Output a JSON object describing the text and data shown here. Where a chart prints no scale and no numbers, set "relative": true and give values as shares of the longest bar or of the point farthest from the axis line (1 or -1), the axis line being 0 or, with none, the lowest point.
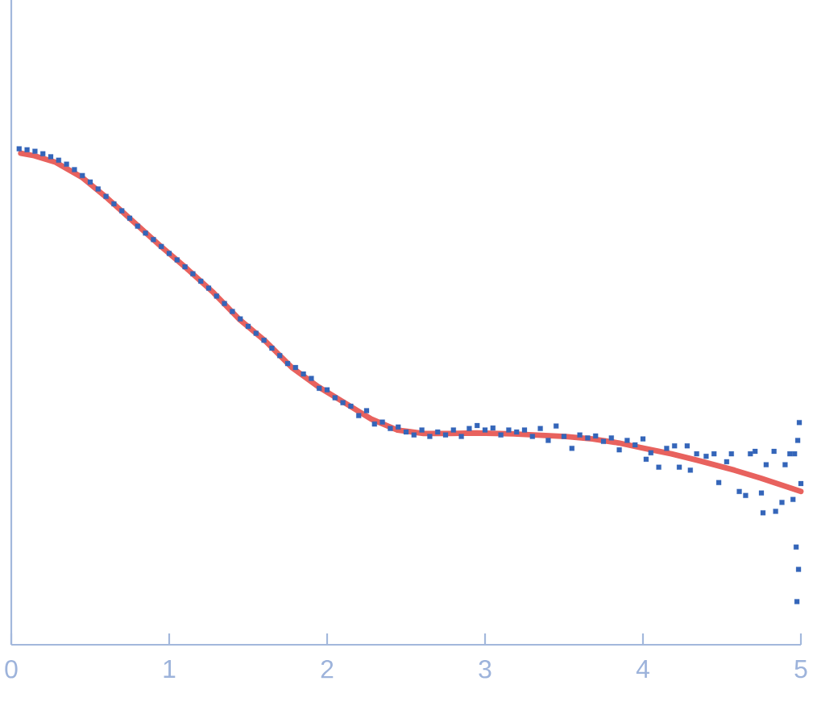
{
  "chart_data": {
    "type": "scatter",
    "relative": true,
    "xlim": [
      0,
      5
    ],
    "xticks": [
      0,
      1,
      2,
      3,
      4,
      5
    ],
    "marker": "square",
    "series": [
      {
        "color": "#3465b9",
        "x": [
          0.05,
          0.1,
          0.15,
          0.2,
          0.25,
          0.3,
          0.35,
          0.4,
          0.45,
          0.5,
          0.55,
          0.6,
          0.65,
          0.7,
          0.75,
          0.8,
          0.85,
          0.9,
          0.95,
          1.0,
          1.05,
          1.1,
          1.15,
          1.2,
          1.25,
          1.3,
          1.35,
          1.4,
          1.45,
          1.5,
          1.55,
          1.6,
          1.65,
          1.7,
          1.75,
          1.8,
          1.85,
          1.9,
          1.95,
          2.0,
          2.05,
          2.1,
          2.15,
          2.2,
          2.25,
          2.3,
          2.35,
          2.4,
          2.45,
          2.5,
          2.55,
          2.6,
          2.65,
          2.7,
          2.75,
          2.8,
          2.85,
          2.9,
          2.95,
          3.0,
          3.05,
          3.1,
          3.15,
          3.2,
          3.25,
          3.3,
          3.35,
          3.4,
          3.45,
          3.5,
          3.55,
          3.6,
          3.65,
          3.7,
          3.75,
          3.8,
          3.85,
          3.9,
          3.95,
          4.0,
          4.02,
          4.05,
          4.1,
          4.15,
          4.2,
          4.23,
          4.28,
          4.3,
          4.34,
          4.4,
          4.45,
          4.48,
          4.53,
          4.56,
          4.61,
          4.65,
          4.68,
          4.71,
          4.75,
          4.76,
          4.78,
          4.83,
          4.84,
          4.88,
          4.9,
          4.93,
          4.95,
          4.96,
          4.97,
          4.975,
          4.98,
          4.985,
          4.99,
          5.0
        ],
        "values": [
          1.0,
          0.998,
          0.995,
          0.99,
          0.984,
          0.977,
          0.969,
          0.958,
          0.946,
          0.933,
          0.919,
          0.904,
          0.889,
          0.875,
          0.86,
          0.844,
          0.83,
          0.817,
          0.803,
          0.789,
          0.776,
          0.762,
          0.748,
          0.733,
          0.719,
          0.703,
          0.688,
          0.672,
          0.657,
          0.642,
          0.628,
          0.614,
          0.598,
          0.583,
          0.567,
          0.559,
          0.546,
          0.537,
          0.517,
          0.514,
          0.498,
          0.488,
          0.481,
          0.462,
          0.472,
          0.445,
          0.449,
          0.436,
          0.439,
          0.429,
          0.423,
          0.433,
          0.42,
          0.429,
          0.423,
          0.433,
          0.42,
          0.436,
          0.442,
          0.433,
          0.437,
          0.423,
          0.433,
          0.429,
          0.433,
          0.42,
          0.436,
          0.412,
          0.441,
          0.42,
          0.396,
          0.423,
          0.417,
          0.421,
          0.41,
          0.417,
          0.393,
          0.412,
          0.403,
          0.415,
          0.374,
          0.387,
          0.358,
          0.396,
          0.401,
          0.358,
          0.401,
          0.352,
          0.385,
          0.38,
          0.385,
          0.327,
          0.369,
          0.385,
          0.309,
          0.301,
          0.385,
          0.39,
          0.306,
          0.266,
          0.363,
          0.39,
          0.269,
          0.287,
          0.363,
          0.385,
          0.293,
          0.385,
          0.197,
          0.087,
          0.412,
          0.152,
          0.448,
          0.325
        ]
      },
      {
        "type": "line",
        "color": "#e8625e",
        "marker": "none",
        "x": [
          0.06,
          0.145,
          0.28,
          0.445,
          0.61,
          0.78,
          0.945,
          1.11,
          1.28,
          1.445,
          1.61,
          1.78,
          1.945,
          2.11,
          2.28,
          2.445,
          2.61,
          2.78,
          2.945,
          3.18,
          3.51,
          3.68,
          3.845,
          4.01,
          4.18,
          4.345,
          4.58,
          4.745,
          5.0
        ],
        "values": [
          0.991,
          0.986,
          0.973,
          0.943,
          0.9,
          0.851,
          0.804,
          0.759,
          0.71,
          0.656,
          0.612,
          0.558,
          0.52,
          0.488,
          0.455,
          0.433,
          0.426,
          0.426,
          0.427,
          0.425,
          0.42,
          0.415,
          0.407,
          0.396,
          0.385,
          0.372,
          0.352,
          0.336,
          0.309
        ]
      }
    ]
  }
}
